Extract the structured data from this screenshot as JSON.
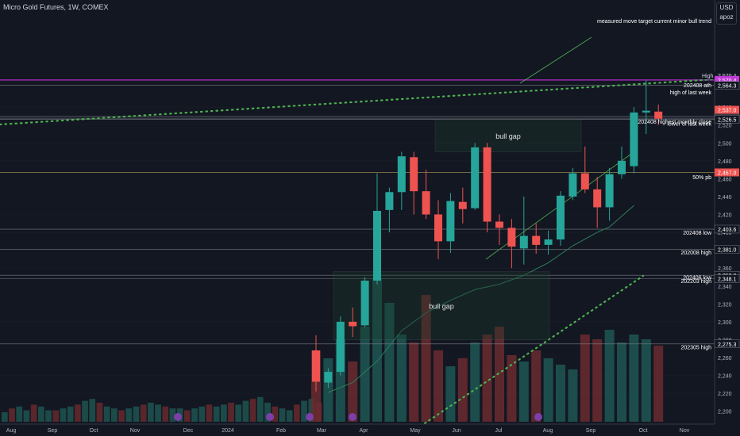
{
  "header": {
    "title": "Micro Gold Futures, 1W, COMEX"
  },
  "currency": {
    "code": "USD",
    "user": "apoz"
  },
  "colors": {
    "up": "#26a69a",
    "down": "#ef5350",
    "bg": "#131722",
    "text": "#d1d4dc",
    "grid": "#2a2e39",
    "accent": "#9c27b0"
  },
  "chart_data": {
    "type": "candlestick",
    "title": "Micro Gold Futures, 1W, COMEX",
    "ylim": [
      2190,
      2580
    ],
    "y_ticks": [
      2200,
      2220,
      2240,
      2260,
      2280,
      2300,
      2320,
      2340,
      2360,
      2380,
      2400,
      2420,
      2440,
      2460,
      2480,
      2500,
      2520,
      2540
    ],
    "x_labels": [
      "Aug",
      "Sep",
      "Oct",
      "Nov",
      "Dec",
      "2024",
      "Feb",
      "Mar",
      "Apr",
      "May",
      "Jun",
      "Jul",
      "Aug",
      "Sep",
      "Oct",
      "Nov"
    ],
    "candles": [
      {
        "o": 2268,
        "h": 2285,
        "l": 2222,
        "c": 2233
      },
      {
        "o": 2232,
        "h": 2248,
        "l": 2226,
        "c": 2244
      },
      {
        "o": 2244,
        "h": 2306,
        "l": 2240,
        "c": 2300
      },
      {
        "o": 2300,
        "h": 2316,
        "l": 2283,
        "c": 2295
      },
      {
        "o": 2296,
        "h": 2350,
        "l": 2294,
        "c": 2346
      },
      {
        "o": 2346,
        "h": 2466,
        "l": 2342,
        "c": 2424
      },
      {
        "o": 2425,
        "h": 2450,
        "l": 2400,
        "c": 2445
      },
      {
        "o": 2445,
        "h": 2490,
        "l": 2425,
        "c": 2485
      },
      {
        "o": 2484,
        "h": 2490,
        "l": 2420,
        "c": 2446
      },
      {
        "o": 2446,
        "h": 2470,
        "l": 2415,
        "c": 2420
      },
      {
        "o": 2420,
        "h": 2436,
        "l": 2370,
        "c": 2390
      },
      {
        "o": 2390,
        "h": 2444,
        "l": 2377,
        "c": 2435
      },
      {
        "o": 2434,
        "h": 2450,
        "l": 2410,
        "c": 2426
      },
      {
        "o": 2427,
        "h": 2500,
        "l": 2425,
        "c": 2495
      },
      {
        "o": 2495,
        "h": 2500,
        "l": 2400,
        "c": 2412
      },
      {
        "o": 2412,
        "h": 2420,
        "l": 2386,
        "c": 2405
      },
      {
        "o": 2405,
        "h": 2415,
        "l": 2360,
        "c": 2384
      },
      {
        "o": 2382,
        "h": 2440,
        "l": 2364,
        "c": 2396
      },
      {
        "o": 2396,
        "h": 2410,
        "l": 2376,
        "c": 2386
      },
      {
        "o": 2386,
        "h": 2402,
        "l": 2375,
        "c": 2392
      },
      {
        "o": 2392,
        "h": 2446,
        "l": 2385,
        "c": 2441
      },
      {
        "o": 2440,
        "h": 2472,
        "l": 2436,
        "c": 2466
      },
      {
        "o": 2466,
        "h": 2496,
        "l": 2444,
        "c": 2448
      },
      {
        "o": 2448,
        "h": 2462,
        "l": 2405,
        "c": 2428
      },
      {
        "o": 2428,
        "h": 2472,
        "l": 2413,
        "c": 2465
      },
      {
        "o": 2465,
        "h": 2496,
        "l": 2460,
        "c": 2480
      },
      {
        "o": 2474,
        "h": 2540,
        "l": 2466,
        "c": 2534
      },
      {
        "o": 2534,
        "h": 2570,
        "l": 2510,
        "c": 2536
      },
      {
        "o": 2535,
        "h": 2543,
        "l": 2520,
        "c": 2527
      }
    ],
    "volume": [
      45,
      40,
      52,
      38,
      60,
      90,
      75,
      55,
      50,
      80,
      45,
      35,
      40,
      50,
      55,
      60,
      42,
      38,
      45,
      40,
      36,
      33,
      55,
      52,
      58,
      50,
      55,
      52,
      48
    ],
    "volume_bg": [
      10,
      14,
      16,
      12,
      18,
      16,
      12,
      12,
      14,
      16,
      18,
      22,
      24,
      20,
      16,
      14,
      12,
      14,
      16,
      18,
      20,
      18,
      16,
      14,
      14,
      12,
      14,
      16,
      18,
      16,
      18,
      20,
      18,
      22,
      24,
      26,
      20,
      16,
      14,
      12,
      18,
      22,
      24,
      20
    ],
    "ma": [
      [
        1,
        2221
      ],
      [
        3,
        2232
      ],
      [
        5,
        2256
      ],
      [
        7,
        2290
      ],
      [
        9,
        2310
      ],
      [
        11,
        2324
      ],
      [
        13,
        2336
      ],
      [
        15,
        2342
      ],
      [
        17,
        2352
      ],
      [
        19,
        2366
      ],
      [
        21,
        2385
      ],
      [
        23,
        2400
      ],
      [
        24,
        2406
      ],
      [
        25,
        2418
      ],
      [
        26,
        2430
      ]
    ],
    "price_labels": [
      {
        "label": "High",
        "value": 2570.4,
        "text": "2,570.4",
        "style": "high"
      },
      {
        "label": "",
        "value": 2570.4,
        "text": "2,570.4",
        "style": "accent"
      },
      {
        "label": "",
        "value": 2564.3,
        "text": "2,564.3",
        "style": "level"
      },
      {
        "label": "",
        "value": 2537.0,
        "text": "2,537.0",
        "style": "last"
      },
      {
        "label": "",
        "value": 2527.6,
        "text": "2,527.6",
        "style": "level"
      },
      {
        "label": "",
        "value": 2526.5,
        "text": "2,526.5",
        "style": "level"
      },
      {
        "label": "",
        "value": 2467.0,
        "text": "2,467.0",
        "style": "orange"
      },
      {
        "label": "",
        "value": 2403.6,
        "text": "2,403.6",
        "style": "level"
      },
      {
        "label": "",
        "value": 2381.0,
        "text": "2,381.0",
        "style": "level"
      },
      {
        "label": "",
        "value": 2352.0,
        "text": "2,352.0",
        "style": "level"
      },
      {
        "label": "",
        "value": 2348.1,
        "text": "2,348.1",
        "style": "level"
      },
      {
        "label": "",
        "value": 2275.3,
        "text": "2,275.3",
        "style": "level"
      }
    ],
    "annotations": [
      {
        "text": "measured move target current minor bull trend",
        "y": 2590
      },
      {
        "text": "202408 ath",
        "y": 2565
      },
      {
        "text": "high of last week",
        "y": 2557
      },
      {
        "text": "202408 highest monthly close",
        "y": 2524
      },
      {
        "text": "lower of last week",
        "y": 2522
      },
      {
        "text": "50% pb",
        "y": 2462
      },
      {
        "text": "202408 low",
        "y": 2400
      },
      {
        "text": "202008 high",
        "y": 2378
      },
      {
        "text": "202406 low",
        "y": 2350
      },
      {
        "text": "202203 high",
        "y": 2346
      },
      {
        "text": "202305 high",
        "y": 2272
      }
    ],
    "boxes": [
      {
        "label": "bull gap",
        "y_top": 2526.5,
        "y_bottom": 2490
      },
      {
        "label": "bull gap",
        "y_top": 2356,
        "y_bottom": 2280
      }
    ],
    "horizontal_levels": [
      2570.4,
      2564.3,
      2529.5,
      2527.6,
      2526.5,
      2467.0,
      2403.6,
      2381.0,
      2352.0,
      2348.1,
      2275.3
    ]
  }
}
